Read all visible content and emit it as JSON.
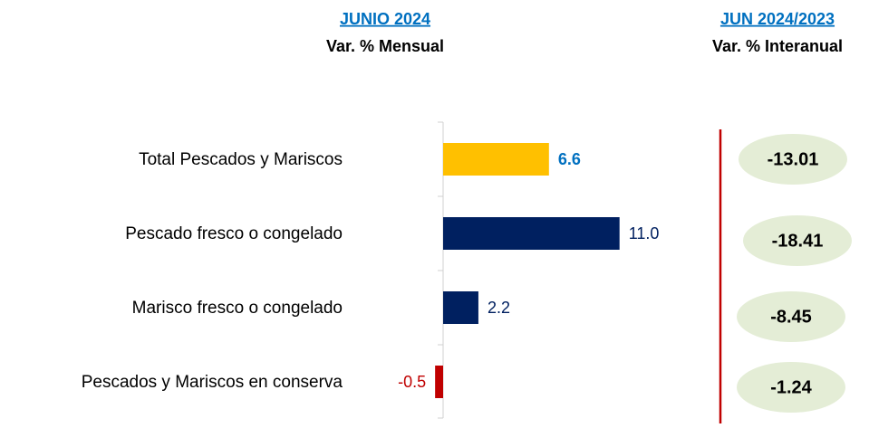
{
  "chart_data": {
    "type": "bar",
    "orientation": "horizontal",
    "headers": {
      "left": {
        "title": "JUNIO 2024",
        "subtitle": "Var. % Mensual"
      },
      "right": {
        "title": "JUN 2024/2023",
        "subtitle": "Var. % Interanual"
      }
    },
    "categories": [
      "Total Pescados y Mariscos",
      "Pescado fresco o congelado",
      "Marisco fresco o congelado",
      "Pescados y Mariscos en conserva"
    ],
    "values": [
      6.6,
      11.0,
      2.2,
      -0.5
    ],
    "value_labels": [
      "6.6",
      "11.0",
      "2.2",
      "-0.5"
    ],
    "colors": [
      "#FFC000",
      "#002060",
      "#002060",
      "#C00000"
    ],
    "label_colors": [
      "#0070C0",
      "#002060",
      "#002060",
      "#C00000"
    ],
    "xlim": [
      -1,
      12
    ],
    "interannual": {
      "values": [
        -13.01,
        -18.41,
        -8.45,
        -1.24
      ],
      "color": "#E4EDD6",
      "divider_color": "#C00000"
    }
  }
}
